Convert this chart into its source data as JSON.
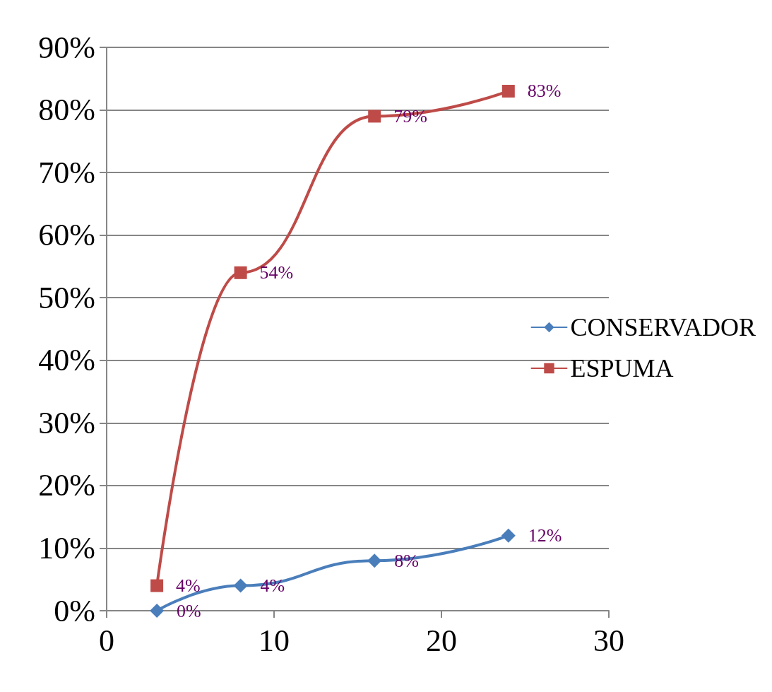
{
  "chart_data": {
    "type": "line",
    "x": [
      3,
      8,
      16,
      24
    ],
    "series": [
      {
        "name": "CONSERVADOR",
        "color": "#4a7ebb",
        "marker": "diamond",
        "values": [
          0,
          4,
          8,
          12
        ],
        "value_labels": [
          "0%",
          "4%",
          "8%",
          "12%"
        ]
      },
      {
        "name": "ESPUMA",
        "color": "#be4b48",
        "marker": "square",
        "values": [
          4,
          54,
          79,
          83
        ],
        "value_labels": [
          "4%",
          "54%",
          "79%",
          "83%"
        ]
      }
    ],
    "xlim": [
      0,
      30
    ],
    "xticks": [
      0,
      10,
      20,
      30
    ],
    "ylim": [
      0,
      90
    ],
    "yticks": [
      {
        "value": 0,
        "label": "0%"
      },
      {
        "value": 10,
        "label": "10%"
      },
      {
        "value": 20,
        "label": "20%"
      },
      {
        "value": 30,
        "label": "30%"
      },
      {
        "value": 40,
        "label": "40%"
      },
      {
        "value": 50,
        "label": "50%"
      },
      {
        "value": 60,
        "label": "60%"
      },
      {
        "value": 70,
        "label": "70%"
      },
      {
        "value": 80,
        "label": "80%"
      },
      {
        "value": 90,
        "label": "90%"
      }
    ],
    "grid": "y",
    "legend": "right",
    "line_style": "solid"
  }
}
